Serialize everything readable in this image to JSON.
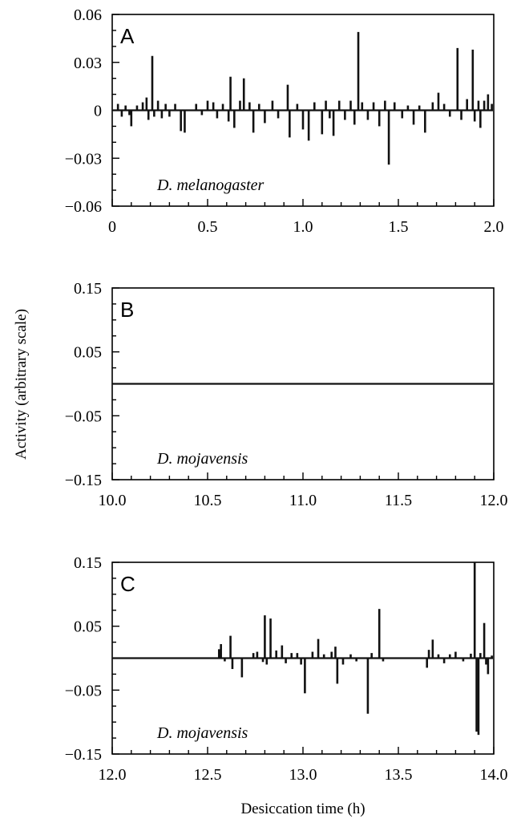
{
  "chart_data": [
    {
      "type": "line",
      "panel": "A",
      "species_label": "D. melanogaster",
      "xlim": [
        0,
        2.0
      ],
      "ylim": [
        -0.06,
        0.06
      ],
      "x_ticks": [
        "0",
        "0.5",
        "1.0",
        "1.5",
        "2.0"
      ],
      "y_ticks": [
        "0.06",
        "0.03",
        "0",
        "−0.03",
        "−0.06"
      ],
      "y_tick_values": [
        0.06,
        0.03,
        0,
        -0.03,
        -0.06
      ],
      "spikes": [
        {
          "x": 0.03,
          "y": 0.004
        },
        {
          "x": 0.05,
          "y": -0.004
        },
        {
          "x": 0.07,
          "y": 0.003
        },
        {
          "x": 0.09,
          "y": -0.003
        },
        {
          "x": 0.1,
          "y": -0.01
        },
        {
          "x": 0.13,
          "y": 0.003
        },
        {
          "x": 0.16,
          "y": 0.005
        },
        {
          "x": 0.18,
          "y": 0.008
        },
        {
          "x": 0.19,
          "y": -0.006
        },
        {
          "x": 0.21,
          "y": 0.034
        },
        {
          "x": 0.22,
          "y": -0.004
        },
        {
          "x": 0.24,
          "y": 0.006
        },
        {
          "x": 0.26,
          "y": -0.005
        },
        {
          "x": 0.28,
          "y": 0.004
        },
        {
          "x": 0.3,
          "y": -0.004
        },
        {
          "x": 0.33,
          "y": 0.004
        },
        {
          "x": 0.36,
          "y": -0.013
        },
        {
          "x": 0.38,
          "y": -0.014
        },
        {
          "x": 0.44,
          "y": 0.004
        },
        {
          "x": 0.47,
          "y": -0.003
        },
        {
          "x": 0.5,
          "y": 0.006
        },
        {
          "x": 0.53,
          "y": 0.005
        },
        {
          "x": 0.55,
          "y": -0.005
        },
        {
          "x": 0.58,
          "y": 0.004
        },
        {
          "x": 0.61,
          "y": -0.007
        },
        {
          "x": 0.62,
          "y": 0.021
        },
        {
          "x": 0.64,
          "y": -0.011
        },
        {
          "x": 0.67,
          "y": 0.006
        },
        {
          "x": 0.69,
          "y": 0.02
        },
        {
          "x": 0.72,
          "y": 0.005
        },
        {
          "x": 0.74,
          "y": -0.014
        },
        {
          "x": 0.77,
          "y": 0.004
        },
        {
          "x": 0.8,
          "y": -0.008
        },
        {
          "x": 0.84,
          "y": 0.006
        },
        {
          "x": 0.87,
          "y": -0.005
        },
        {
          "x": 0.92,
          "y": 0.016
        },
        {
          "x": 0.93,
          "y": -0.017
        },
        {
          "x": 0.97,
          "y": 0.004
        },
        {
          "x": 1.0,
          "y": -0.012
        },
        {
          "x": 1.03,
          "y": -0.019
        },
        {
          "x": 1.06,
          "y": 0.005
        },
        {
          "x": 1.1,
          "y": -0.015
        },
        {
          "x": 1.12,
          "y": 0.006
        },
        {
          "x": 1.14,
          "y": -0.005
        },
        {
          "x": 1.16,
          "y": -0.016
        },
        {
          "x": 1.19,
          "y": 0.006
        },
        {
          "x": 1.22,
          "y": -0.006
        },
        {
          "x": 1.25,
          "y": 0.006
        },
        {
          "x": 1.27,
          "y": -0.009
        },
        {
          "x": 1.29,
          "y": 0.049
        },
        {
          "x": 1.31,
          "y": 0.005
        },
        {
          "x": 1.34,
          "y": -0.006
        },
        {
          "x": 1.37,
          "y": 0.005
        },
        {
          "x": 1.4,
          "y": -0.01
        },
        {
          "x": 1.43,
          "y": 0.006
        },
        {
          "x": 1.45,
          "y": -0.034
        },
        {
          "x": 1.48,
          "y": 0.005
        },
        {
          "x": 1.52,
          "y": -0.005
        },
        {
          "x": 1.55,
          "y": 0.003
        },
        {
          "x": 1.58,
          "y": -0.009
        },
        {
          "x": 1.61,
          "y": 0.003
        },
        {
          "x": 1.64,
          "y": -0.014
        },
        {
          "x": 1.68,
          "y": 0.005
        },
        {
          "x": 1.71,
          "y": 0.011
        },
        {
          "x": 1.74,
          "y": 0.004
        },
        {
          "x": 1.77,
          "y": -0.004
        },
        {
          "x": 1.81,
          "y": 0.039
        },
        {
          "x": 1.83,
          "y": -0.006
        },
        {
          "x": 1.86,
          "y": 0.007
        },
        {
          "x": 1.89,
          "y": 0.038
        },
        {
          "x": 1.9,
          "y": -0.007
        },
        {
          "x": 1.92,
          "y": 0.006
        },
        {
          "x": 1.93,
          "y": -0.011
        },
        {
          "x": 1.95,
          "y": 0.006
        },
        {
          "x": 1.97,
          "y": 0.01
        },
        {
          "x": 1.99,
          "y": 0.004
        }
      ]
    },
    {
      "type": "line",
      "panel": "B",
      "species_label": "D. mojavensis",
      "xlim": [
        10.0,
        12.0
      ],
      "ylim": [
        -0.15,
        0.15
      ],
      "x_ticks": [
        "10.0",
        "10.5",
        "11.0",
        "11.5",
        "12.0"
      ],
      "y_ticks": [
        "0.15",
        "0.05",
        "−0.05",
        "−0.15"
      ],
      "y_tick_values": [
        0.15,
        0.05,
        -0.05,
        -0.15
      ],
      "spikes": []
    },
    {
      "type": "line",
      "panel": "C",
      "species_label": "D. mojavensis",
      "xlim": [
        12.0,
        14.0
      ],
      "ylim": [
        -0.15,
        0.15
      ],
      "x_ticks": [
        "12.0",
        "12.5",
        "13.0",
        "13.5",
        "14.0"
      ],
      "y_ticks": [
        "0.15",
        "0.05",
        "−0.05",
        "−0.15"
      ],
      "y_tick_values": [
        0.15,
        0.05,
        -0.05,
        -0.15
      ],
      "spikes": [
        {
          "x": 12.56,
          "y": 0.014
        },
        {
          "x": 12.57,
          "y": 0.022
        },
        {
          "x": 12.59,
          "y": -0.005
        },
        {
          "x": 12.62,
          "y": 0.035
        },
        {
          "x": 12.63,
          "y": -0.017
        },
        {
          "x": 12.68,
          "y": -0.03
        },
        {
          "x": 12.74,
          "y": 0.008
        },
        {
          "x": 12.76,
          "y": 0.01
        },
        {
          "x": 12.79,
          "y": -0.006
        },
        {
          "x": 12.8,
          "y": 0.067
        },
        {
          "x": 12.81,
          "y": -0.01
        },
        {
          "x": 12.83,
          "y": 0.062
        },
        {
          "x": 12.86,
          "y": 0.012
        },
        {
          "x": 12.89,
          "y": 0.02
        },
        {
          "x": 12.91,
          "y": -0.008
        },
        {
          "x": 12.94,
          "y": 0.008
        },
        {
          "x": 12.97,
          "y": 0.008
        },
        {
          "x": 12.99,
          "y": -0.01
        },
        {
          "x": 13.01,
          "y": -0.055
        },
        {
          "x": 13.05,
          "y": 0.01
        },
        {
          "x": 13.08,
          "y": 0.03
        },
        {
          "x": 13.11,
          "y": 0.006
        },
        {
          "x": 13.15,
          "y": 0.01
        },
        {
          "x": 13.17,
          "y": 0.018
        },
        {
          "x": 13.18,
          "y": -0.04
        },
        {
          "x": 13.21,
          "y": -0.01
        },
        {
          "x": 13.25,
          "y": 0.006
        },
        {
          "x": 13.28,
          "y": -0.005
        },
        {
          "x": 13.34,
          "y": -0.087
        },
        {
          "x": 13.36,
          "y": 0.008
        },
        {
          "x": 13.4,
          "y": 0.077
        },
        {
          "x": 13.42,
          "y": -0.005
        },
        {
          "x": 13.65,
          "y": -0.015
        },
        {
          "x": 13.66,
          "y": 0.013
        },
        {
          "x": 13.68,
          "y": 0.029
        },
        {
          "x": 13.71,
          "y": 0.006
        },
        {
          "x": 13.74,
          "y": -0.008
        },
        {
          "x": 13.77,
          "y": 0.006
        },
        {
          "x": 13.8,
          "y": 0.01
        },
        {
          "x": 13.84,
          "y": -0.005
        },
        {
          "x": 13.88,
          "y": 0.007
        },
        {
          "x": 13.9,
          "y": 0.15
        },
        {
          "x": 13.91,
          "y": -0.115
        },
        {
          "x": 13.92,
          "y": -0.12
        },
        {
          "x": 13.93,
          "y": 0.008
        },
        {
          "x": 13.95,
          "y": 0.055
        },
        {
          "x": 13.96,
          "y": -0.01
        },
        {
          "x": 13.97,
          "y": -0.025
        },
        {
          "x": 13.99,
          "y": 0.004
        }
      ]
    }
  ],
  "axis_labels": {
    "y": "Activity (arbitrary scale)",
    "x": "Desiccation time (h)"
  }
}
